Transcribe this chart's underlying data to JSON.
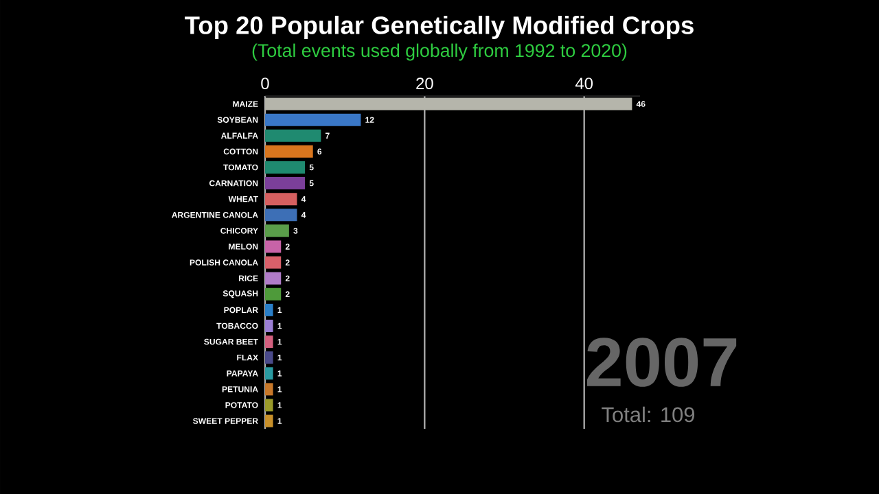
{
  "chart_data": {
    "type": "bar",
    "orientation": "horizontal",
    "title": "Top 20 Popular Genetically Modified Crops",
    "subtitle": "(Total events used globally from 1992 to 2020)",
    "categories": [
      "MAIZE",
      "SOYBEAN",
      "ALFALFA",
      "COTTON",
      "TOMATO",
      "CARNATION",
      "WHEAT",
      "ARGENTINE CANOLA",
      "CHICORY",
      "MELON",
      "POLISH CANOLA",
      "RICE",
      "SQUASH",
      "POPLAR",
      "TOBACCO",
      "SUGAR BEET",
      "FLAX",
      "PAPAYA",
      "PETUNIA",
      "POTATO",
      "SWEET PEPPER"
    ],
    "values": [
      46,
      12,
      7,
      6,
      5,
      5,
      4,
      4,
      3,
      2,
      2,
      2,
      2,
      1,
      1,
      1,
      1,
      1,
      1,
      1,
      1
    ],
    "colors": [
      "#b5b5ab",
      "#3a78c8",
      "#1f8a70",
      "#d9761e",
      "#1f8a70",
      "#7b3f9a",
      "#d66060",
      "#3d6fb6",
      "#5a9e4a",
      "#c863a8",
      "#d9606a",
      "#b07cc8",
      "#4e9a3a",
      "#2a7fc8",
      "#9b7fd4",
      "#d4607f",
      "#4a4a8a",
      "#2a9aa0",
      "#c8782a",
      "#9a9a2a",
      "#c8902a"
    ],
    "xlim": [
      0,
      47
    ],
    "xticks": [
      0,
      20,
      40
    ],
    "grid": "x",
    "data_labels": true,
    "annotations": [
      "2007",
      "Total: 109"
    ]
  }
}
